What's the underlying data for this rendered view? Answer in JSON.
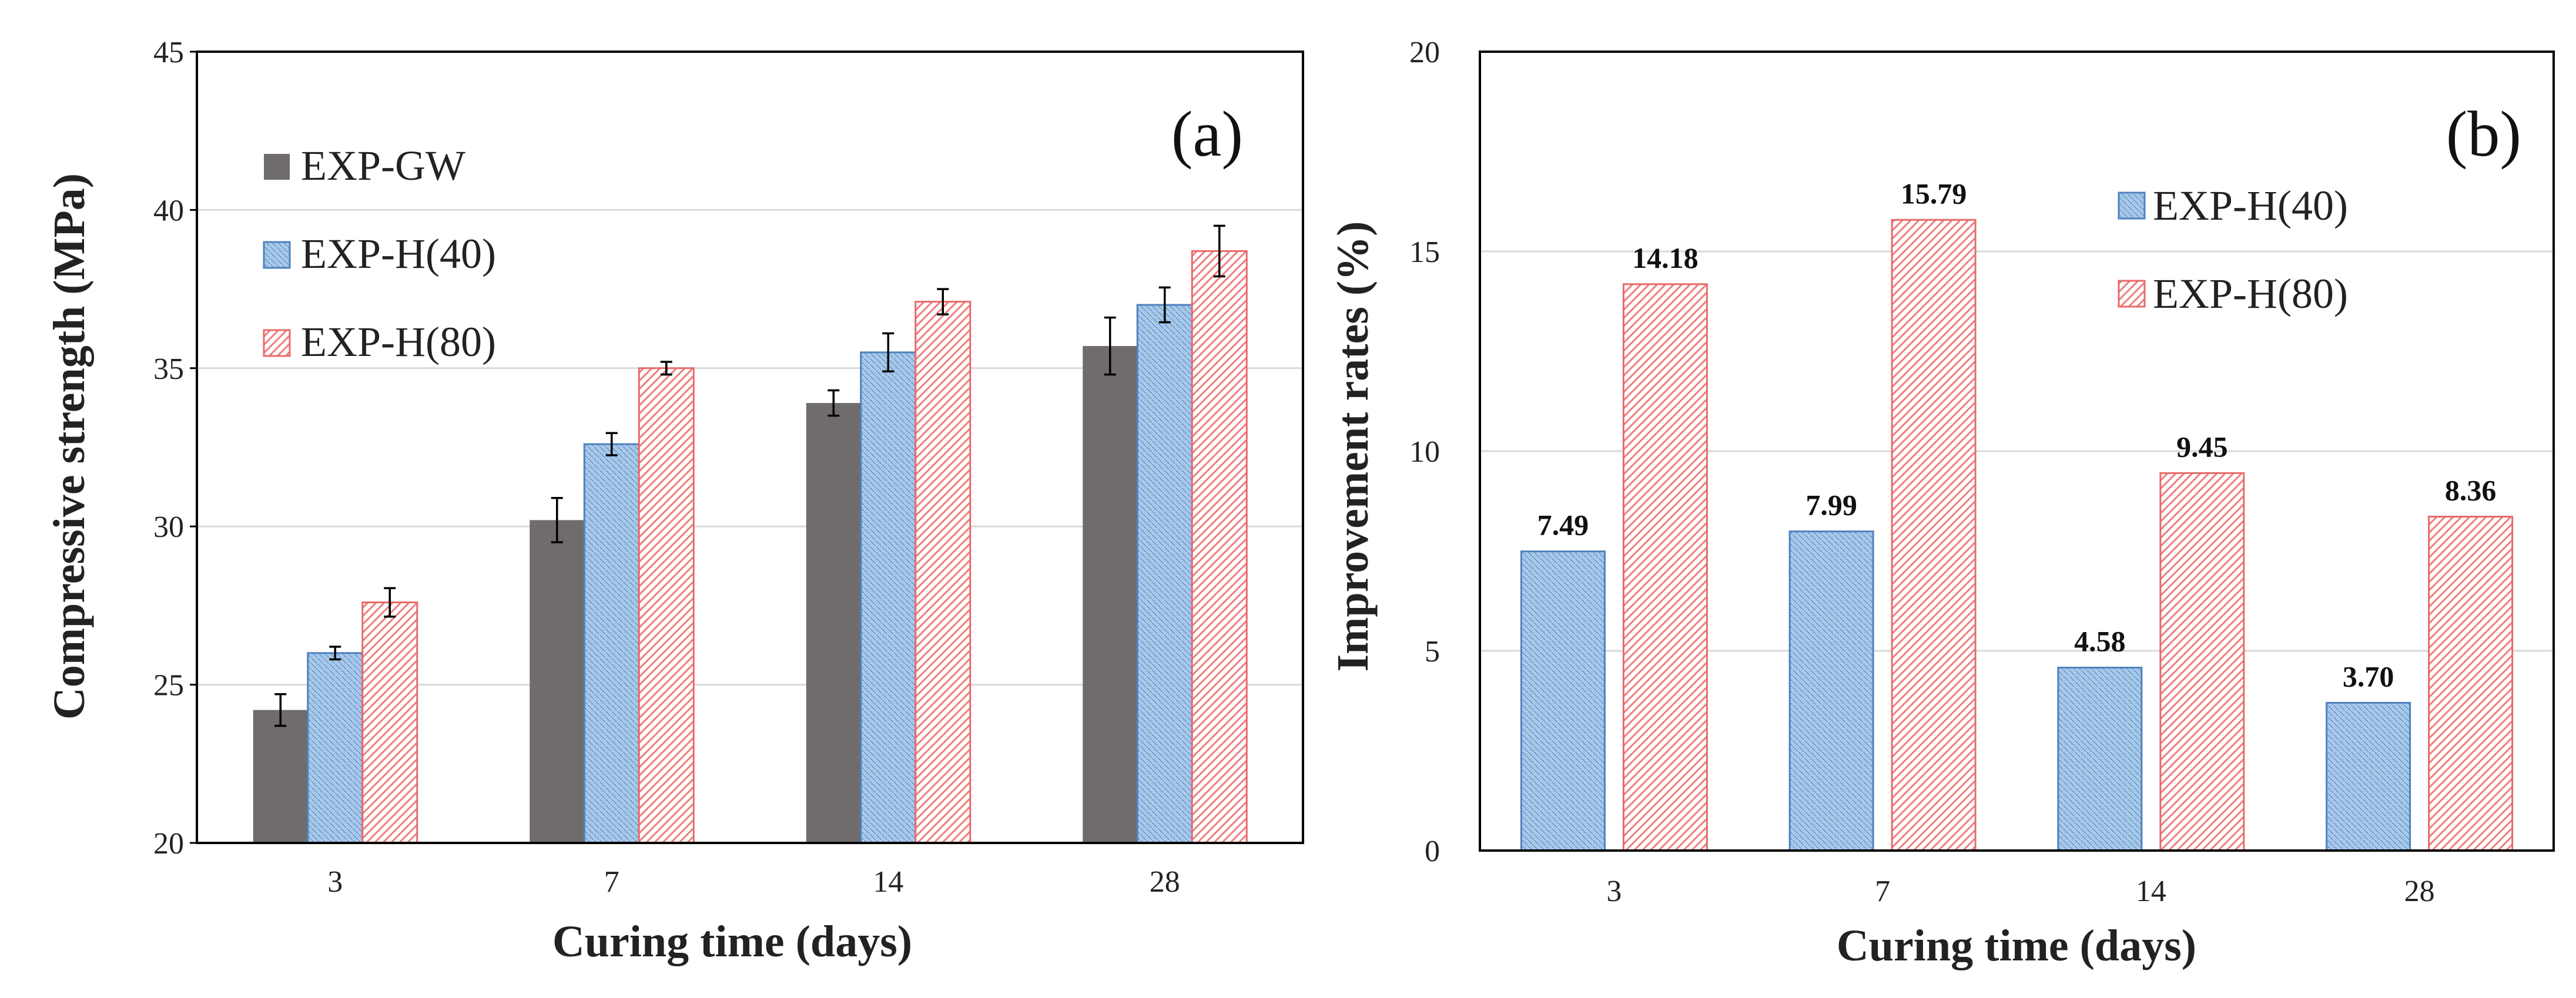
{
  "colors": {
    "gw": "#706C6B",
    "h40_fill": "#B7D3EE",
    "h40_edge": "#4F81BD",
    "h40_hatch": "#6F9ED1",
    "h80_fill": "#FFFFFF",
    "h80_edge": "#E86A6A",
    "h80_hatch": "#EE7D7D",
    "grid": "#D9D9D9",
    "axis": "#000000",
    "errorbar": "#000000"
  },
  "chart_data": [
    {
      "type": "bar",
      "panel": "(a)",
      "xlabel": "Curing time (days)",
      "ylabel": "Compressive strength (MPa)",
      "categories": [
        "3",
        "7",
        "14",
        "28"
      ],
      "ylim": [
        20,
        45
      ],
      "yticks": [
        "20",
        "25",
        "30",
        "35",
        "40",
        "45"
      ],
      "grid": true,
      "legend_position": "top-left",
      "series": [
        {
          "name": "EXP-GW",
          "values": [
            24.2,
            30.2,
            33.9,
            35.7
          ],
          "errors": [
            0.5,
            0.7,
            0.4,
            0.9
          ]
        },
        {
          "name": "EXP-H(40)",
          "values": [
            26.0,
            32.6,
            35.5,
            37.0
          ],
          "errors": [
            0.2,
            0.35,
            0.6,
            0.55
          ]
        },
        {
          "name": "EXP-H(80)",
          "values": [
            27.6,
            35.0,
            37.1,
            38.7
          ],
          "errors": [
            0.45,
            0.2,
            0.4,
            0.8
          ]
        }
      ]
    },
    {
      "type": "bar",
      "panel": "(b)",
      "xlabel": "Curing time (days)",
      "ylabel": "Improvement rates (%)",
      "categories": [
        "3",
        "7",
        "14",
        "28"
      ],
      "ylim": [
        0,
        20
      ],
      "yticks": [
        "0",
        "5",
        "10",
        "15",
        "20"
      ],
      "grid": true,
      "legend_position": "top-right",
      "series": [
        {
          "name": "EXP-H(40)",
          "values": [
            7.49,
            7.99,
            4.58,
            3.7
          ],
          "labels": [
            "7.49",
            "7.99",
            "4.58",
            "3.70"
          ]
        },
        {
          "name": "EXP-H(80)",
          "values": [
            14.18,
            15.79,
            9.45,
            8.36
          ],
          "labels": [
            "14.18",
            "15.79",
            "9.45",
            "8.36"
          ]
        }
      ]
    }
  ]
}
